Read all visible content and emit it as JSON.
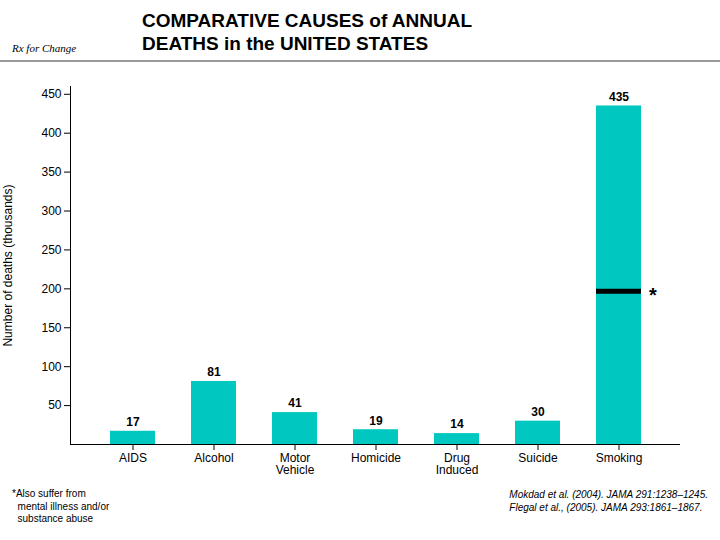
{
  "chart_data": {
    "type": "bar",
    "title": "COMPARATIVE CAUSES of ANNUAL\nDEATHS in the UNITED STATES",
    "logo_text": "Rx for Change",
    "categories": [
      "AIDS",
      "Alcohol",
      "Motor\nVehicle",
      "Homicide",
      "Drug\nInduced",
      "Suicide",
      "Smoking"
    ],
    "values": [
      17,
      81,
      41,
      19,
      14,
      30,
      435
    ],
    "color": "#00C8C0",
    "data_labels": true,
    "ylabel": "Number of deaths (thousands)",
    "ylim": [
      0,
      460
    ],
    "yticks": [
      50,
      100,
      150,
      200,
      250,
      300,
      350,
      400,
      450
    ],
    "grid": false,
    "reference_line": {
      "category": "Smoking",
      "y": 197,
      "color": "#000000",
      "label": "*"
    },
    "footnote": "*Also suffer from\n  mental illness and/or\n  substance abuse",
    "source": "Mokdad et al. (2004). JAMA 291:1238–1245.\nFlegal et al., (2005). JAMA 293:1861–1867."
  }
}
